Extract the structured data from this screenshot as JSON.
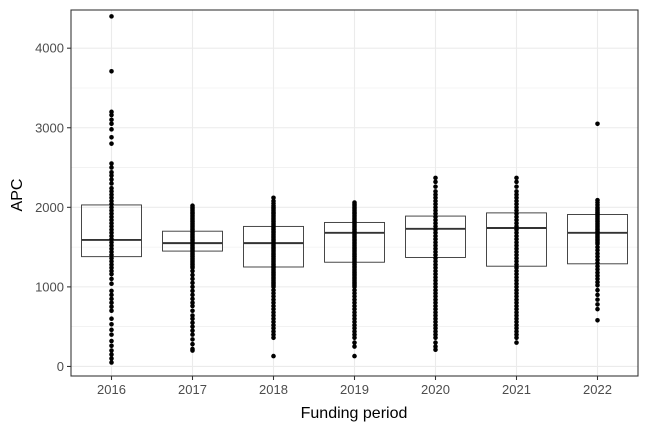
{
  "chart_data": {
    "type": "box",
    "xlabel": "Funding period",
    "ylabel": "APC",
    "ylim": [
      -120,
      4480
    ],
    "yticks": [
      0,
      1000,
      2000,
      3000,
      4000
    ],
    "grid": true,
    "legend": "none",
    "colors": {
      "panel_border": "#333333",
      "grid": "#ebebeb",
      "box": "#333333",
      "median": "#333333",
      "point": "#000000"
    },
    "categories": [
      "2016",
      "2017",
      "2018",
      "2019",
      "2020",
      "2021",
      "2022"
    ],
    "boxes": [
      {
        "category": "2016",
        "q1": 1380,
        "median": 1590,
        "q3": 2030
      },
      {
        "category": "2017",
        "q1": 1450,
        "median": 1550,
        "q3": 1700
      },
      {
        "category": "2018",
        "q1": 1250,
        "median": 1550,
        "q3": 1760
      },
      {
        "category": "2019",
        "q1": 1310,
        "median": 1680,
        "q3": 1810
      },
      {
        "category": "2020",
        "q1": 1370,
        "median": 1730,
        "q3": 1890
      },
      {
        "category": "2021",
        "q1": 1260,
        "median": 1740,
        "q3": 1930
      },
      {
        "category": "2022",
        "q1": 1290,
        "median": 1680,
        "q3": 1910
      }
    ],
    "points": {
      "2016": [
        4400,
        3710,
        3200,
        3160,
        3100,
        3050,
        2980,
        2880,
        2800,
        2550,
        2500,
        2440,
        2400,
        2350,
        2300,
        2240,
        2200,
        2160,
        2120,
        2080,
        2040,
        2000,
        1960,
        1920,
        1880,
        1840,
        1800,
        1760,
        1720,
        1680,
        1640,
        1600,
        1560,
        1520,
        1480,
        1440,
        1400,
        1360,
        1320,
        1280,
        1240,
        1200,
        1160,
        1100,
        1040,
        950,
        900,
        850,
        800,
        750,
        700,
        600,
        530,
        460,
        400,
        320,
        260,
        200,
        150,
        100,
        50
      ],
      "2017": [
        2020,
        2000,
        1980,
        1960,
        1940,
        1920,
        1900,
        1880,
        1860,
        1840,
        1820,
        1800,
        1780,
        1760,
        1740,
        1720,
        1700,
        1680,
        1660,
        1640,
        1620,
        1600,
        1580,
        1560,
        1540,
        1520,
        1500,
        1480,
        1460,
        1440,
        1420,
        1400,
        1380,
        1360,
        1340,
        1320,
        1300,
        1280,
        1260,
        1240,
        1200,
        1150,
        1100,
        1050,
        1000,
        950,
        900,
        850,
        800,
        760,
        700,
        640,
        600,
        550,
        500,
        450,
        400,
        340,
        280,
        220,
        200
      ],
      "2018": [
        2120,
        2080,
        2050,
        2020,
        2000,
        1980,
        1960,
        1940,
        1920,
        1900,
        1880,
        1860,
        1840,
        1820,
        1800,
        1780,
        1760,
        1740,
        1720,
        1700,
        1680,
        1660,
        1640,
        1620,
        1600,
        1580,
        1560,
        1540,
        1520,
        1500,
        1480,
        1460,
        1440,
        1420,
        1400,
        1380,
        1360,
        1340,
        1320,
        1300,
        1280,
        1260,
        1240,
        1220,
        1200,
        1180,
        1160,
        1140,
        1120,
        1100,
        1080,
        1060,
        1040,
        1020,
        1000,
        960,
        920,
        880,
        840,
        800,
        760,
        720,
        680,
        640,
        600,
        560,
        520,
        480,
        440,
        400,
        360,
        130
      ],
      "2019": [
        2060,
        2040,
        2020,
        2000,
        1980,
        1960,
        1940,
        1920,
        1900,
        1880,
        1860,
        1840,
        1820,
        1800,
        1780,
        1760,
        1740,
        1720,
        1700,
        1680,
        1660,
        1640,
        1620,
        1600,
        1580,
        1560,
        1540,
        1520,
        1500,
        1480,
        1460,
        1440,
        1420,
        1400,
        1380,
        1360,
        1340,
        1320,
        1300,
        1280,
        1260,
        1240,
        1220,
        1200,
        1180,
        1160,
        1140,
        1120,
        1100,
        1080,
        1060,
        1040,
        1020,
        1000,
        960,
        920,
        880,
        840,
        800,
        760,
        720,
        680,
        640,
        600,
        560,
        520,
        480,
        440,
        400,
        360,
        300,
        250,
        130
      ],
      "2020": [
        2370,
        2320,
        2260,
        2200,
        2160,
        2120,
        2080,
        2040,
        2000,
        1960,
        1920,
        1880,
        1840,
        1800,
        1760,
        1720,
        1680,
        1640,
        1600,
        1560,
        1520,
        1480,
        1440,
        1400,
        1360,
        1320,
        1280,
        1240,
        1200,
        1160,
        1120,
        1080,
        1040,
        1000,
        960,
        920,
        880,
        840,
        800,
        760,
        720,
        680,
        640,
        600,
        560,
        520,
        480,
        440,
        400,
        360,
        300,
        250,
        210
      ],
      "2021": [
        2370,
        2320,
        2260,
        2200,
        2160,
        2120,
        2080,
        2040,
        2000,
        1960,
        1920,
        1880,
        1840,
        1800,
        1760,
        1720,
        1680,
        1640,
        1600,
        1560,
        1520,
        1480,
        1440,
        1400,
        1360,
        1320,
        1280,
        1240,
        1200,
        1160,
        1120,
        1080,
        1040,
        1000,
        960,
        920,
        880,
        840,
        800,
        760,
        720,
        680,
        640,
        600,
        560,
        520,
        480,
        440,
        400,
        360,
        300
      ],
      "2022": [
        3050,
        2090,
        2060,
        2030,
        2000,
        1980,
        1960,
        1940,
        1920,
        1900,
        1880,
        1860,
        1840,
        1820,
        1800,
        1780,
        1760,
        1740,
        1720,
        1700,
        1680,
        1660,
        1640,
        1620,
        1600,
        1580,
        1560,
        1540,
        1500,
        1460,
        1420,
        1380,
        1340,
        1300,
        1260,
        1220,
        1180,
        1140,
        1100,
        1060,
        1020,
        960,
        900,
        840,
        780,
        720,
        580
      ]
    }
  }
}
